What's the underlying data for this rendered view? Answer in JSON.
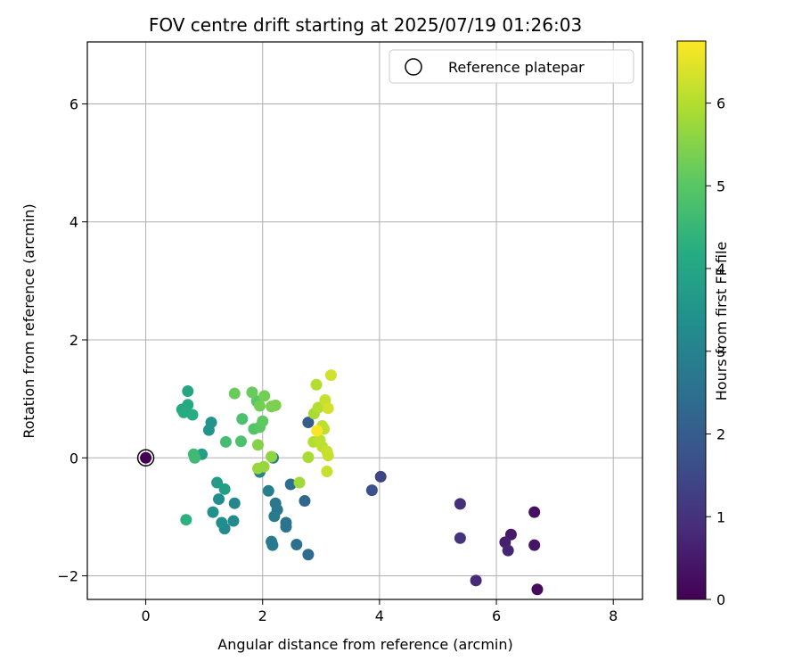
{
  "chart_data": {
    "type": "scatter",
    "title": "FOV centre drift starting at 2025/07/19 01:26:03",
    "xlabel": "Angular distance from reference (arcmin)",
    "ylabel": "Rotation from reference (arcmin)",
    "xlim": [
      -1,
      8.5
    ],
    "ylim": [
      -2.4,
      7.05
    ],
    "xticks": [
      0,
      2,
      4,
      6,
      8
    ],
    "yticks": [
      -2,
      0,
      2,
      4,
      6
    ],
    "grid": true,
    "legend": {
      "placement": "top-right",
      "label": "Reference platepar"
    },
    "reference_point": {
      "x": 0,
      "y": 0
    },
    "colorbar": {
      "label": "Hours from first FF file",
      "range": [
        0,
        6.75
      ],
      "ticks": [
        0,
        1,
        2,
        3,
        4,
        5,
        6
      ],
      "colormap": "viridis"
    },
    "points": [
      {
        "x": 0.0,
        "y": 0.0,
        "c": 0.0
      },
      {
        "x": 6.7,
        "y": -2.23,
        "c": 0.2
      },
      {
        "x": 6.65,
        "y": -0.92,
        "c": 0.3
      },
      {
        "x": 6.65,
        "y": -1.48,
        "c": 0.4
      },
      {
        "x": 6.25,
        "y": -1.3,
        "c": 0.5
      },
      {
        "x": 6.15,
        "y": -1.43,
        "c": 0.6
      },
      {
        "x": 6.2,
        "y": -1.57,
        "c": 0.7
      },
      {
        "x": 5.65,
        "y": -2.08,
        "c": 0.8
      },
      {
        "x": 5.38,
        "y": -0.78,
        "c": 0.9
      },
      {
        "x": 5.38,
        "y": -1.36,
        "c": 1.0
      },
      {
        "x": 4.02,
        "y": -0.32,
        "c": 1.4
      },
      {
        "x": 3.87,
        "y": -0.55,
        "c": 1.7
      },
      {
        "x": 2.78,
        "y": 0.6,
        "c": 2.0
      },
      {
        "x": 2.72,
        "y": -0.73,
        "c": 2.3
      },
      {
        "x": 2.78,
        "y": -1.64,
        "c": 2.4
      },
      {
        "x": 2.58,
        "y": -1.47,
        "c": 2.5
      },
      {
        "x": 2.48,
        "y": -0.45,
        "c": 2.5
      },
      {
        "x": 2.4,
        "y": -1.1,
        "c": 2.6
      },
      {
        "x": 2.4,
        "y": -1.17,
        "c": 2.6
      },
      {
        "x": 2.22,
        "y": -0.77,
        "c": 2.7
      },
      {
        "x": 2.25,
        "y": -0.88,
        "c": 2.7
      },
      {
        "x": 2.2,
        "y": -0.99,
        "c": 2.8
      },
      {
        "x": 2.15,
        "y": -1.42,
        "c": 2.8
      },
      {
        "x": 2.17,
        "y": -1.48,
        "c": 2.8
      },
      {
        "x": 2.18,
        "y": 0.0,
        "c": 2.9
      },
      {
        "x": 2.1,
        "y": -0.56,
        "c": 2.9
      },
      {
        "x": 1.95,
        "y": -0.24,
        "c": 3.0
      },
      {
        "x": 1.52,
        "y": -0.77,
        "c": 3.1
      },
      {
        "x": 1.5,
        "y": -1.07,
        "c": 3.2
      },
      {
        "x": 1.35,
        "y": -1.2,
        "c": 3.2
      },
      {
        "x": 1.3,
        "y": -1.1,
        "c": 3.3
      },
      {
        "x": 1.25,
        "y": -0.7,
        "c": 3.3
      },
      {
        "x": 1.15,
        "y": -0.92,
        "c": 3.4
      },
      {
        "x": 1.12,
        "y": 0.6,
        "c": 3.5
      },
      {
        "x": 1.08,
        "y": 0.47,
        "c": 3.5
      },
      {
        "x": 1.22,
        "y": -0.42,
        "c": 3.7
      },
      {
        "x": 1.35,
        "y": -0.53,
        "c": 3.8
      },
      {
        "x": 0.96,
        "y": 0.06,
        "c": 3.8
      },
      {
        "x": 0.72,
        "y": 1.13,
        "c": 4.0
      },
      {
        "x": 0.72,
        "y": 0.9,
        "c": 4.1
      },
      {
        "x": 0.62,
        "y": 0.82,
        "c": 4.1
      },
      {
        "x": 0.65,
        "y": 0.77,
        "c": 4.2
      },
      {
        "x": 0.8,
        "y": 0.73,
        "c": 4.2
      },
      {
        "x": 0.69,
        "y": -1.05,
        "c": 4.3
      },
      {
        "x": 0.82,
        "y": 0.06,
        "c": 4.6
      },
      {
        "x": 0.84,
        "y": 0.0,
        "c": 4.6
      },
      {
        "x": 1.37,
        "y": 0.27,
        "c": 4.7
      },
      {
        "x": 1.65,
        "y": 0.66,
        "c": 4.8
      },
      {
        "x": 1.63,
        "y": 0.28,
        "c": 4.8
      },
      {
        "x": 1.85,
        "y": 0.49,
        "c": 4.9
      },
      {
        "x": 1.95,
        "y": 0.52,
        "c": 5.0
      },
      {
        "x": 1.9,
        "y": 0.96,
        "c": 5.0
      },
      {
        "x": 2.0,
        "y": 0.62,
        "c": 5.1
      },
      {
        "x": 1.52,
        "y": 1.09,
        "c": 5.2
      },
      {
        "x": 1.82,
        "y": 1.11,
        "c": 5.2
      },
      {
        "x": 2.03,
        "y": 1.05,
        "c": 5.3
      },
      {
        "x": 1.95,
        "y": 0.88,
        "c": 5.3
      },
      {
        "x": 2.15,
        "y": 0.87,
        "c": 5.4
      },
      {
        "x": 2.22,
        "y": 0.89,
        "c": 5.4
      },
      {
        "x": 1.92,
        "y": 0.22,
        "c": 5.5
      },
      {
        "x": 2.15,
        "y": 0.02,
        "c": 5.6
      },
      {
        "x": 2.02,
        "y": -0.15,
        "c": 5.7
      },
      {
        "x": 1.92,
        "y": -0.18,
        "c": 5.7
      },
      {
        "x": 2.63,
        "y": -0.42,
        "c": 5.8
      },
      {
        "x": 2.78,
        "y": 0.01,
        "c": 5.9
      },
      {
        "x": 2.88,
        "y": 0.75,
        "c": 5.9
      },
      {
        "x": 2.87,
        "y": 0.27,
        "c": 6.0
      },
      {
        "x": 2.92,
        "y": 1.24,
        "c": 6.0
      },
      {
        "x": 2.95,
        "y": 0.85,
        "c": 6.0
      },
      {
        "x": 2.98,
        "y": 0.3,
        "c": 6.1
      },
      {
        "x": 3.02,
        "y": 0.19,
        "c": 6.1
      },
      {
        "x": 3.02,
        "y": 0.54,
        "c": 6.1
      },
      {
        "x": 3.05,
        "y": 0.49,
        "c": 6.1
      },
      {
        "x": 3.07,
        "y": 0.98,
        "c": 6.2
      },
      {
        "x": 3.1,
        "y": 0.11,
        "c": 6.2
      },
      {
        "x": 3.12,
        "y": 0.04,
        "c": 6.2
      },
      {
        "x": 3.1,
        "y": -0.23,
        "c": 6.2
      },
      {
        "x": 3.12,
        "y": 0.84,
        "c": 6.3
      },
      {
        "x": 3.17,
        "y": 1.4,
        "c": 6.3
      },
      {
        "x": 2.93,
        "y": 0.46,
        "c": 6.7
      }
    ]
  }
}
